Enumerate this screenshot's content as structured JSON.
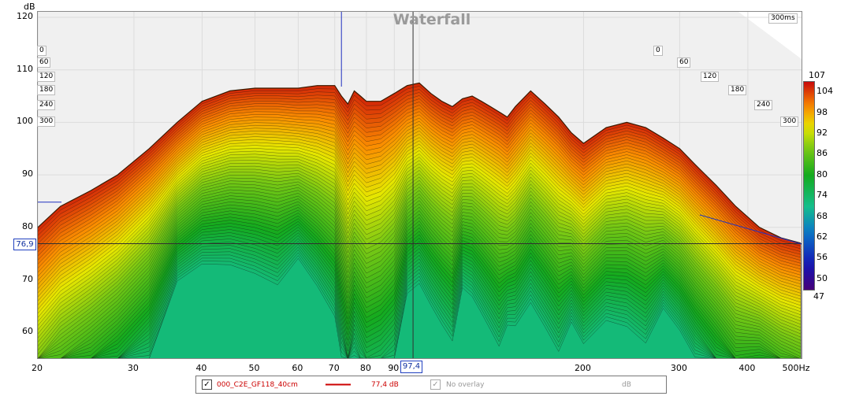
{
  "chart_data": {
    "type": "area",
    "title": "Waterfall",
    "ylabel": "dB",
    "xlabel": "Hz",
    "x_scale": "log",
    "xlim": [
      20,
      500
    ],
    "ylim": [
      55,
      121
    ],
    "x_ticks": [
      "20",
      "30",
      "40",
      "50",
      "60",
      "70",
      "80",
      "90",
      "97,4",
      "200",
      "300",
      "400",
      "500Hz"
    ],
    "y_ticks": [
      "120",
      "110",
      "100",
      "90",
      "80",
      "70",
      "60"
    ],
    "time_axis": {
      "max_label": "300ms",
      "ticks_left": [
        "0",
        "60",
        "120",
        "180",
        "240",
        "300"
      ],
      "ticks_right": [
        "0",
        "60",
        "120",
        "180",
        "240",
        "300"
      ],
      "slices": 60,
      "max_ms": 300
    },
    "series": [
      {
        "name": "000_C2E_GF118_40cm",
        "x": [
          20,
          22,
          25,
          28,
          32,
          36,
          40,
          45,
          50,
          55,
          60,
          65,
          70,
          72,
          74,
          76,
          78,
          80,
          85,
          90,
          95,
          100,
          105,
          110,
          115,
          120,
          125,
          130,
          135,
          140,
          145,
          150,
          160,
          170,
          180,
          190,
          200,
          220,
          240,
          260,
          280,
          300,
          320,
          350,
          380,
          420,
          460,
          500
        ],
        "y": [
          80,
          84,
          87,
          90,
          95,
          100,
          104,
          106,
          106.5,
          106.5,
          106.5,
          107,
          107,
          105,
          103.5,
          106,
          105,
          104,
          104,
          105.5,
          107,
          107.5,
          105.5,
          104,
          103,
          104.5,
          105,
          104,
          103,
          102,
          101,
          103,
          106,
          103.5,
          101,
          98,
          96,
          99,
          100,
          99,
          97,
          95,
          92,
          88,
          84,
          80,
          78,
          77
        ],
        "decay_db_per_slice": [
          0.65,
          0.6,
          0.55,
          0.5,
          0.45,
          0.42,
          0.4,
          0.4,
          0.4,
          0.4,
          0.45,
          0.5,
          0.55,
          0.6,
          0.65,
          0.7,
          0.7,
          0.7,
          0.65,
          0.6,
          0.55,
          0.5,
          0.5,
          0.5,
          0.5,
          0.5,
          0.5,
          0.5,
          0.5,
          0.5,
          0.55,
          0.55,
          0.5,
          0.5,
          0.5,
          0.5,
          0.5,
          0.45,
          0.45,
          0.45,
          0.45,
          0.45,
          0.45,
          0.45,
          0.45,
          0.45,
          0.45,
          0.45
        ]
      }
    ],
    "cursor": {
      "x_label": "97,4",
      "y_label": "76,9"
    },
    "colorbar": {
      "min": 47,
      "max": 107,
      "ticks": [
        "104",
        "98",
        "92",
        "86",
        "80",
        "74",
        "68",
        "62",
        "56",
        "50"
      ],
      "min_label": "47",
      "max_label": "107"
    },
    "grid": true
  },
  "legend": {
    "trace_checked": "✓",
    "trace_name": "000_C2E_GF118_40cm",
    "trace_value": "77,4 dB",
    "trace_color": "#cc0000",
    "overlay_checked": "✓",
    "overlay_label": "No overlay",
    "overlay_unit": "dB"
  }
}
